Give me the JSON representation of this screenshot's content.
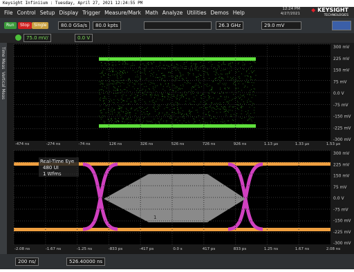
{
  "title_bar": "Keysight Infiniium : Tuesday, April 27, 2021 12:24:55 PM",
  "menu": [
    "File",
    "Control",
    "Setup",
    "Display",
    "Trigger",
    "Measure/Mark",
    "Math",
    "Analyze",
    "Utilities",
    "Demos",
    "Help"
  ],
  "clock": {
    "time": "12:24 PM",
    "date": "4/27/2021"
  },
  "brand": {
    "name": "KEYSIGHT",
    "sub": "TECHNOLOGIES"
  },
  "toolbar": {
    "run": "Run",
    "stop": "Stop",
    "single": "Single",
    "sample_rate": "80.0 GSa/s",
    "memory": "80.0 kpts",
    "bandwidth": "26.3 GHz",
    "trigger_level": "29.0 mV"
  },
  "channel": {
    "scale": "75.0 mV/",
    "offset": "0.0 V"
  },
  "side_tabs": [
    "Time Meas",
    "Vertical Meas"
  ],
  "upper_plot": {
    "y_labels": [
      "300 mV",
      "225 mV",
      "150 mV",
      "75 mV",
      "0.0 V",
      "-75 mV",
      "-150 mV",
      "-225 mV",
      "-300 mV"
    ],
    "x_labels": [
      "-474 ns",
      "-274 ns",
      "-74 ns",
      "126 ns",
      "326 ns",
      "526 ns",
      "726 ns",
      "926 ns",
      "1.13 µs",
      "1.33 µs",
      "1.53 µs"
    ]
  },
  "lower_plot": {
    "annotation": [
      "Real-Time Eye",
      "480 UI",
      "1 Wfms"
    ],
    "mask_label": "1",
    "y_labels": [
      "300 mV",
      "225 mV",
      "150 mV",
      "75 mV",
      "0.0 V",
      "-75 mV",
      "-150 mV",
      "-225 mV",
      "-300 mV"
    ],
    "x_labels": [
      "-2.08 ns",
      "-1.67 ns",
      "-1.25 ns",
      "-833 ps",
      "-417 ps",
      "0.0 s",
      "417 ps",
      "833 ps",
      "1.25 ns",
      "1.67 ns",
      "2.08 ns"
    ]
  },
  "timebase": {
    "scale": "200 ns/",
    "position": "526.40000 ns"
  }
}
